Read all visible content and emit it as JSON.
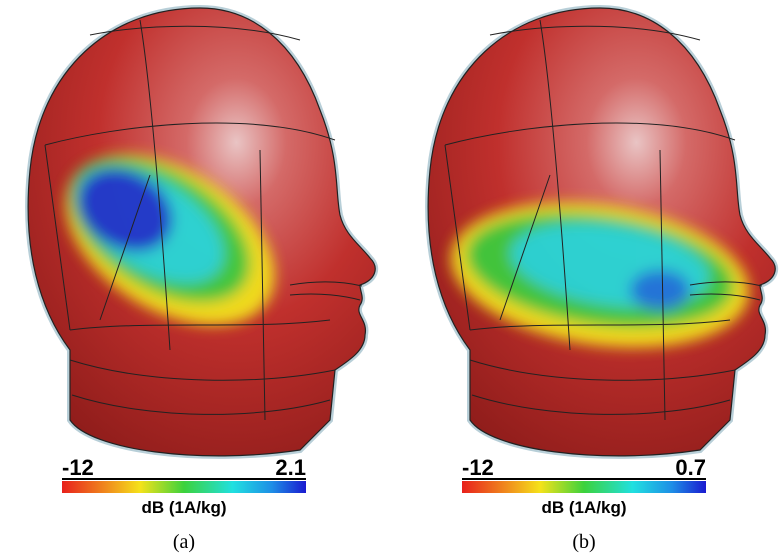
{
  "panels": [
    {
      "label": "(a)",
      "colorbar": {
        "min": "-12",
        "max": "2.1",
        "unit": "dB (1A/kg)"
      }
    },
    {
      "label": "(b)",
      "colorbar": {
        "min": "-12",
        "max": "0.7",
        "unit": "dB (1A/kg)"
      }
    }
  ]
}
